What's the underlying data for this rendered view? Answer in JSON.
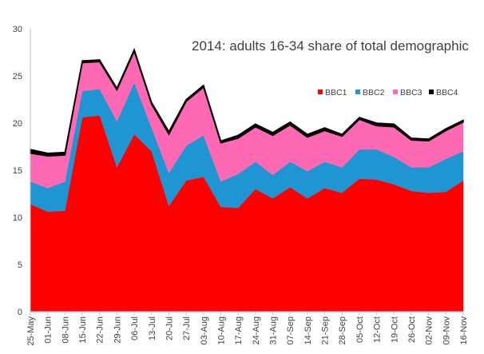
{
  "chart_data": {
    "type": "area",
    "stacked": true,
    "title": "2014: adults 16-34 share of total demographic",
    "xlabel": "",
    "ylabel": "",
    "ylim": [
      0,
      30
    ],
    "yticks": [
      "0",
      "5",
      "10",
      "15",
      "20",
      "25",
      "30"
    ],
    "grid": false,
    "legend_position": "top-right",
    "categories": [
      "25-May",
      "01-Jun",
      "08-Jun",
      "15-Jun",
      "22-Jun",
      "29-Jun",
      "06-Jul",
      "13-Jul",
      "20-Jul",
      "27-Jul",
      "03-Aug",
      "10-Aug",
      "17-Aug",
      "24-Aug",
      "31-Aug",
      "07-Sep",
      "14-Sep",
      "21-Sep",
      "28-Sep",
      "05-Oct",
      "12-Oct",
      "19-Oct",
      "26-Oct",
      "02-Nov",
      "09-Nov",
      "16-Nov"
    ],
    "series": [
      {
        "name": "BBC1",
        "color": "#ff0000",
        "values": [
          11.4,
          10.6,
          10.7,
          20.6,
          20.8,
          15.3,
          18.8,
          17.0,
          11.2,
          13.9,
          14.3,
          11.1,
          11.0,
          13.0,
          12.0,
          13.2,
          12.0,
          13.1,
          12.6,
          14.1,
          14.0,
          13.5,
          12.8,
          12.6,
          12.7,
          13.9
        ]
      },
      {
        "name": "BBC2",
        "color": "#1f95d1",
        "values": [
          2.4,
          2.5,
          3.1,
          2.8,
          2.8,
          4.9,
          5.5,
          2.5,
          3.5,
          3.7,
          4.4,
          2.7,
          3.6,
          2.9,
          2.5,
          2.7,
          2.9,
          2.8,
          2.7,
          3.1,
          3.2,
          2.9,
          2.5,
          2.7,
          3.5,
          3.1
        ]
      },
      {
        "name": "BBC3",
        "color": "#ff69b4",
        "values": [
          3.0,
          3.4,
          2.8,
          3.0,
          2.9,
          3.3,
          3.3,
          2.5,
          4.1,
          4.7,
          5.1,
          4.1,
          3.8,
          3.7,
          4.2,
          3.9,
          3.6,
          3.3,
          3.3,
          3.2,
          2.5,
          3.2,
          2.9,
          2.8,
          3.0,
          3.1
        ]
      },
      {
        "name": "BBC4",
        "color": "#000000",
        "values": [
          0.4,
          0.3,
          0.3,
          0.2,
          0.2,
          0.2,
          0.2,
          0.2,
          0.3,
          0.2,
          0.2,
          0.2,
          0.3,
          0.3,
          0.3,
          0.3,
          0.3,
          0.3,
          0.2,
          0.2,
          0.3,
          0.3,
          0.2,
          0.2,
          0.2,
          0.2
        ]
      }
    ]
  }
}
